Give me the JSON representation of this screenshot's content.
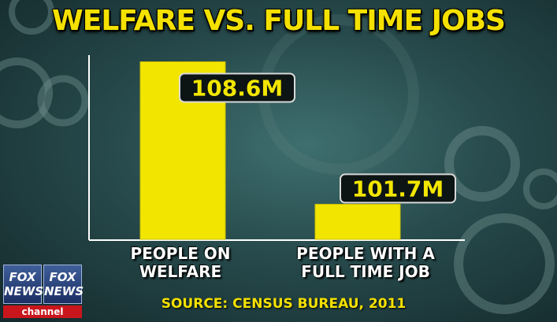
{
  "chart_data": {
    "type": "bar",
    "title": "WELFARE VS. FULL TIME JOBS",
    "categories": [
      "PEOPLE ON\nWELFARE",
      "PEOPLE WITH A\nFULL TIME JOB"
    ],
    "values": [
      108.6,
      101.7
    ],
    "data_labels": [
      "108.6M",
      "101.7M"
    ],
    "source": "SOURCE: CENSUS BUREAU, 2011",
    "ylim": [
      100,
      109
    ],
    "bar_color": "#f2e600",
    "grid": false,
    "legend": "none"
  },
  "logo": {
    "left_text": "FOX NEWS",
    "right_text": "FOX NEWS",
    "channel_text": "channel"
  }
}
